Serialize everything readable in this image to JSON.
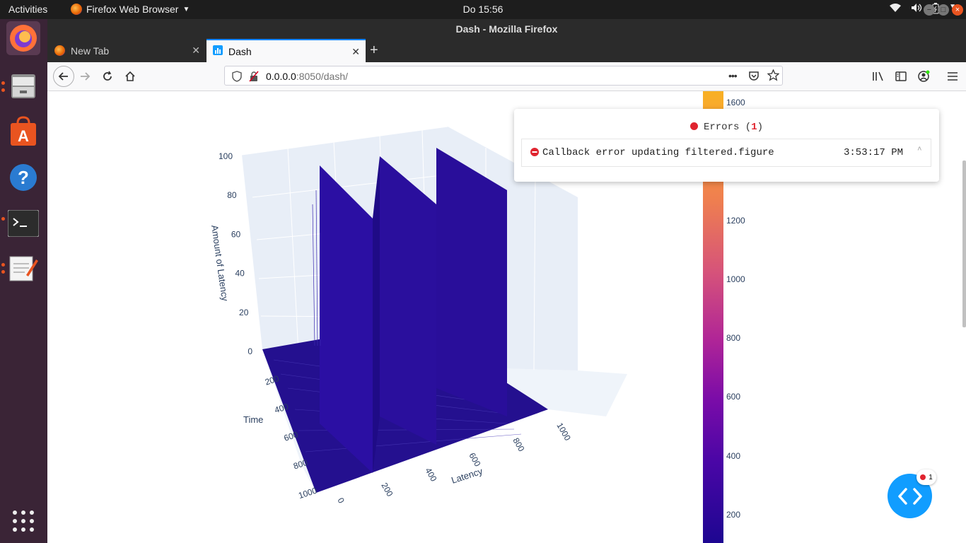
{
  "topbar": {
    "activities": "Activities",
    "app_name": "Firefox Web Browser",
    "clock": "Do 15:56"
  },
  "window": {
    "title": "Dash - Mozilla Firefox"
  },
  "tabs": [
    {
      "label": "New Tab",
      "active": false
    },
    {
      "label": "Dash",
      "active": true
    }
  ],
  "navbar": {
    "url_host": "0.0.0.0",
    "url_path": ":8050/dash/",
    "page_actions": "•••"
  },
  "chart_data": {
    "type": "surface",
    "title": "",
    "xlabel": "Latency",
    "ylabel": "Time",
    "zlabel": "Amount of Latency",
    "x_ticks": [
      "0",
      "200",
      "400",
      "600",
      "800",
      "1000"
    ],
    "y_ticks": [
      "200",
      "400",
      "600",
      "800",
      "1000"
    ],
    "z_ticks": [
      "0",
      "20",
      "40",
      "60",
      "80",
      "100"
    ],
    "xlim": [
      0,
      1000
    ],
    "ylim": [
      0,
      1000
    ],
    "zlim": [
      0,
      100
    ],
    "colorbar_ticks": [
      "1600",
      "1200",
      "1000",
      "800",
      "600",
      "400",
      "200"
    ],
    "colorscale": [
      "#f8b023",
      "#ef7f4f",
      "#d6537a",
      "#b02597",
      "#7b0ca8",
      "#4a06a6",
      "#1d0691"
    ],
    "surface_color": "#24108f"
  },
  "errors": {
    "title": "Errors",
    "count": "1",
    "items": [
      {
        "message": "Callback error updating filtered.figure",
        "time": "3:53:17 PM"
      }
    ]
  },
  "devtools": {
    "badge_count": "1"
  }
}
